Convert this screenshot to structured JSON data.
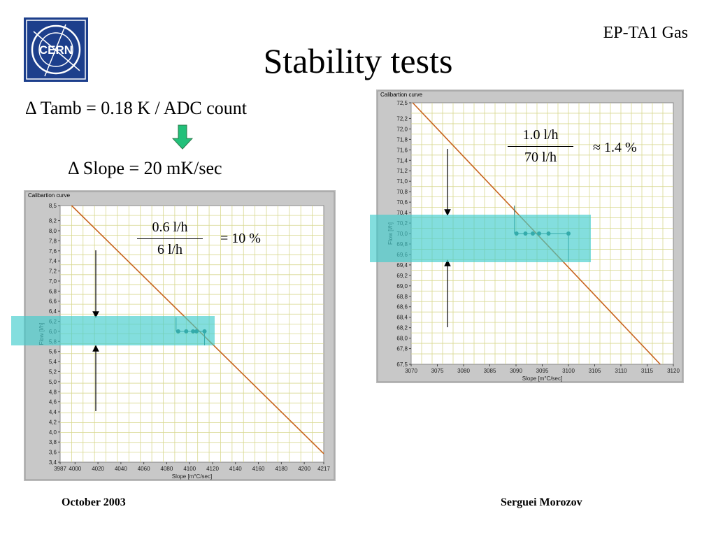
{
  "header": {
    "org_label": "EP-TA1 Gas",
    "title": "Stability tests",
    "logo_text": "CERN"
  },
  "equations": {
    "tamb": "Δ Tamb = 0.18 K / ADC count",
    "slope": "Δ Slope = 20 mK/sec"
  },
  "footer": {
    "date": "October 2003",
    "author": "Serguei Morozov"
  },
  "colors": {
    "curve": "#c8641e",
    "band": "#40cccc",
    "points": "#1e6e6e",
    "grid": "#d8d890",
    "arrow_fill": "#22c07a"
  },
  "chart_data": [
    {
      "type": "line",
      "panel_title": "Calibartion curve",
      "xlabel": "Slope [m°C/sec]",
      "ylabel": "Flow [l/h]",
      "xlim": [
        3987,
        4217
      ],
      "ylim": [
        3.4,
        8.5
      ],
      "x_ticks": [
        3987,
        4000,
        4020,
        4040,
        4060,
        4080,
        4100,
        4120,
        4140,
        4160,
        4180,
        4200,
        4217
      ],
      "y_ticks": [
        "8,5",
        "8,2",
        "8,0",
        "7,8",
        "7,6",
        "7,4",
        "7,2",
        "7,0",
        "6,8",
        "6,6",
        "6,4",
        "6,2",
        "6,0",
        "5,8",
        "5,6",
        "5,4",
        "5,2",
        "5,0",
        "4,8",
        "4,6",
        "4,4",
        "4,2",
        "4,0",
        "3,8",
        "3,6",
        "3,4"
      ],
      "curve": {
        "x": [
          3997,
          4217
        ],
        "y": [
          8.5,
          3.57
        ]
      },
      "points": {
        "x": [
          4090,
          4097,
          4103,
          4106,
          4113
        ],
        "y": [
          6.0,
          6.0,
          6.0,
          6.0,
          6.0
        ]
      },
      "fraction": {
        "numerator": "0.6 l/h",
        "denominator": "6 l/h",
        "result": "= 10 %"
      }
    },
    {
      "type": "line",
      "panel_title": "Calibartion curve",
      "xlabel": "Slope [m°C/sec]",
      "ylabel": "Flow [l/h]",
      "xlim": [
        3070,
        3120
      ],
      "ylim": [
        67.5,
        72.5
      ],
      "x_ticks": [
        3070,
        3075,
        3080,
        3085,
        3090,
        3095,
        3100,
        3105,
        3110,
        3115,
        3120
      ],
      "y_ticks": [
        "72,5",
        "72,2",
        "72,0",
        "71,8",
        "71,6",
        "71,4",
        "71,2",
        "71,0",
        "70,8",
        "70,6",
        "70,4",
        "70,2",
        "70,0",
        "69,8",
        "69,6",
        "69,4",
        "69,2",
        "69,0",
        "68,8",
        "68,6",
        "68,4",
        "68,2",
        "68,0",
        "67,8",
        "67,5"
      ],
      "curve": {
        "x": [
          3070.3,
          3117.5
        ],
        "y": [
          72.5,
          67.5
        ]
      },
      "points": {
        "x": [
          3090.1,
          3091.8,
          3093.2,
          3094.4,
          3096.2,
          3100.0
        ],
        "y": [
          70.0,
          70.0,
          70.0,
          70.0,
          70.0,
          70.0
        ]
      },
      "fraction": {
        "numerator": "1.0 l/h",
        "denominator": "70 l/h",
        "result": "≈ 1.4 %"
      }
    }
  ]
}
